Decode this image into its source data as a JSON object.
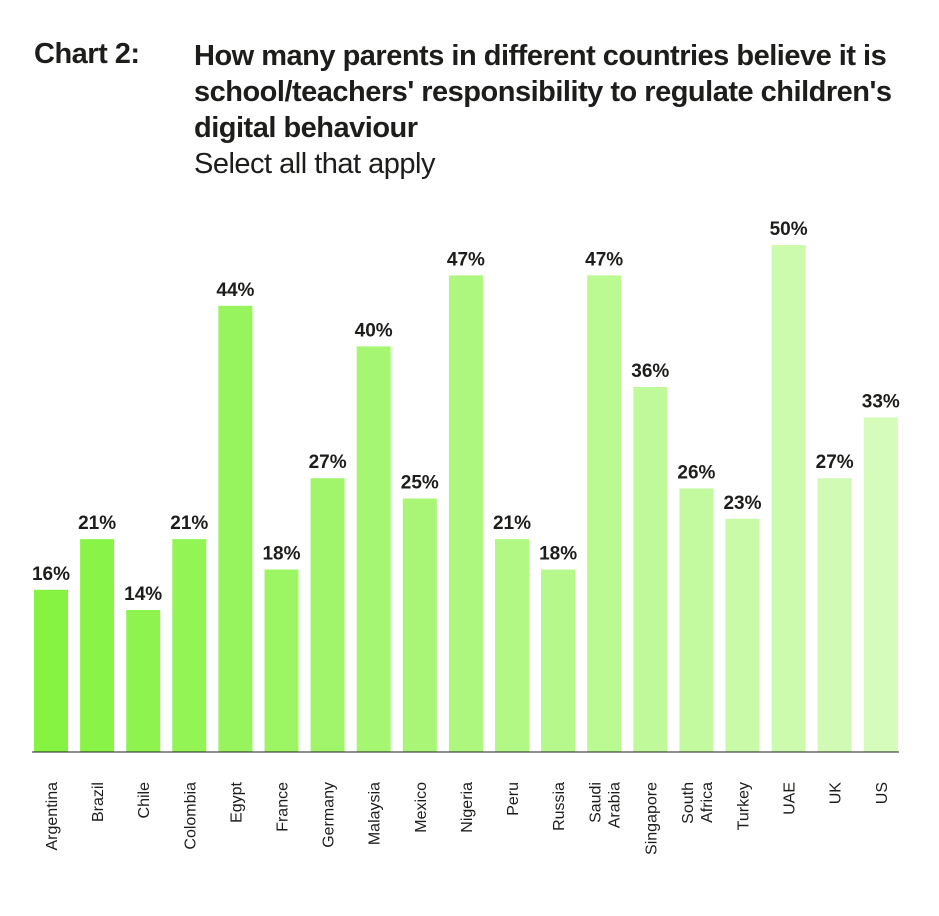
{
  "header": {
    "chart_label": "Chart 2:",
    "title": "How many parents in different countries believe it is school/teachers' responsibility to regulate children's digital behaviour",
    "subtitle": "Select all that apply"
  },
  "colors": {
    "bar_start": "#86f241",
    "bar_end": "#d5fcbb",
    "axis": "#1d1d1b",
    "text": "#1d1d1b"
  },
  "chart_data": {
    "type": "bar",
    "title": "How many parents in different countries believe it is school/teachers' responsibility to regulate children's digital behaviour",
    "subtitle": "Select all that apply",
    "categories": [
      [
        "Argentina"
      ],
      [
        "Brazil"
      ],
      [
        "Chile"
      ],
      [
        "Colombia"
      ],
      [
        "Egypt"
      ],
      [
        "France"
      ],
      [
        "Germany"
      ],
      [
        "Malaysia"
      ],
      [
        "Mexico"
      ],
      [
        "Nigeria"
      ],
      [
        "Peru"
      ],
      [
        "Russia"
      ],
      [
        "Saudi",
        "Arabia"
      ],
      [
        "Singapore"
      ],
      [
        "South",
        "Africa"
      ],
      [
        "Turkey"
      ],
      [
        "UAE"
      ],
      [
        "UK"
      ],
      [
        "US"
      ]
    ],
    "values": [
      16,
      21,
      14,
      21,
      44,
      18,
      27,
      40,
      25,
      47,
      21,
      18,
      47,
      36,
      26,
      23,
      50,
      27,
      33
    ],
    "data_labels": [
      "16%",
      "21%",
      "14%",
      "21%",
      "44%",
      "18%",
      "27%",
      "40%",
      "25%",
      "47%",
      "21%",
      "18%",
      "47%",
      "36%",
      "26%",
      "23%",
      "50%",
      "27%",
      "33%"
    ],
    "ylim": [
      0,
      50
    ],
    "unit": "%",
    "xlabel": "",
    "ylabel": "",
    "grid": false,
    "legend": "none"
  }
}
